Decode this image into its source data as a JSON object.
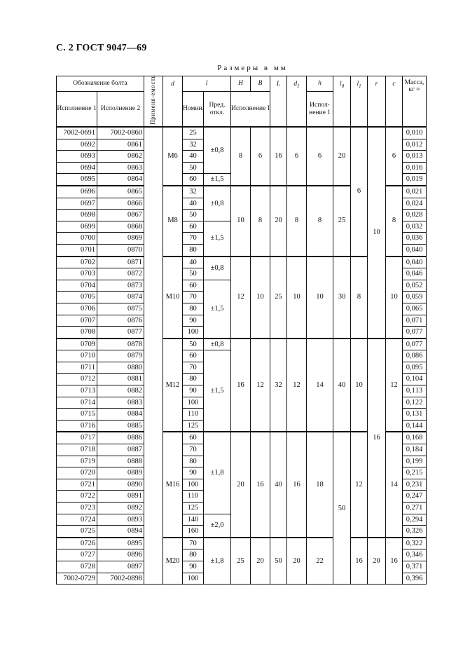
{
  "header": {
    "title": "С. 2 ГОСТ 9047—69",
    "units": "Размеры в мм"
  },
  "table": {
    "headers": {
      "designation": "Обозначение болта",
      "isp1": "Исполнение 1",
      "isp2": "Исполнение 2",
      "applicability": "Применя-емость",
      "d": "d",
      "l": "l",
      "l_nom": "Номин.",
      "l_tol": "Пред. откл.",
      "H": "H",
      "B": "B",
      "HB_sub": "Исполнение I",
      "L": "L",
      "d1": "d1",
      "h": "h",
      "h_sub": "Испол-нение 1",
      "l0": "l0",
      "l1": "l1",
      "r": "r",
      "c": "c",
      "mass": "Масса, кг ≈"
    },
    "rows": [
      {
        "isp1": "7002-0691",
        "isp2": "7002-0860",
        "l": "25",
        "mass": "0,010"
      },
      {
        "isp1": "0692",
        "isp2": "0861",
        "l": "32",
        "mass": "0,012"
      },
      {
        "isp1": "0693",
        "isp2": "0862",
        "l": "40",
        "mass": "0,013"
      },
      {
        "isp1": "0694",
        "isp2": "0863",
        "l": "50",
        "mass": "0,016"
      },
      {
        "isp1": "0695",
        "isp2": "0864",
        "l": "60",
        "mass": "0,019"
      },
      {
        "isp1": "0696",
        "isp2": "0865",
        "l": "32",
        "mass": "0,021"
      },
      {
        "isp1": "0697",
        "isp2": "0866",
        "l": "40",
        "mass": "0,024"
      },
      {
        "isp1": "0698",
        "isp2": "0867",
        "l": "50",
        "mass": "0,028"
      },
      {
        "isp1": "0699",
        "isp2": "0868",
        "l": "60",
        "mass": "0,032"
      },
      {
        "isp1": "0700",
        "isp2": "0869",
        "l": "70",
        "mass": "0,036"
      },
      {
        "isp1": "0701",
        "isp2": "0870",
        "l": "80",
        "mass": "0,040"
      },
      {
        "isp1": "0702",
        "isp2": "0871",
        "l": "40",
        "mass": "0,040"
      },
      {
        "isp1": "0703",
        "isp2": "0872",
        "l": "50",
        "mass": "0,046"
      },
      {
        "isp1": "0704",
        "isp2": "0873",
        "l": "60",
        "mass": "0,052"
      },
      {
        "isp1": "0705",
        "isp2": "0874",
        "l": "70",
        "mass": "0,059"
      },
      {
        "isp1": "0706",
        "isp2": "0875",
        "l": "80",
        "mass": "0,065"
      },
      {
        "isp1": "0707",
        "isp2": "0876",
        "l": "90",
        "mass": "0,071"
      },
      {
        "isp1": "0708",
        "isp2": "0877",
        "l": "100",
        "mass": "0,077"
      },
      {
        "isp1": "0709",
        "isp2": "0878",
        "l": "50",
        "mass": "0,077"
      },
      {
        "isp1": "0710",
        "isp2": "0879",
        "l": "60",
        "mass": "0,086"
      },
      {
        "isp1": "0711",
        "isp2": "0880",
        "l": "70",
        "mass": "0,095"
      },
      {
        "isp1": "0712",
        "isp2": "0881",
        "l": "80",
        "mass": "0,104"
      },
      {
        "isp1": "0713",
        "isp2": "0882",
        "l": "90",
        "mass": "0,113"
      },
      {
        "isp1": "0714",
        "isp2": "0883",
        "l": "100",
        "mass": "0,122"
      },
      {
        "isp1": "0715",
        "isp2": "0884",
        "l": "110",
        "mass": "0,131"
      },
      {
        "isp1": "0716",
        "isp2": "0885",
        "l": "125",
        "mass": "0,144"
      },
      {
        "isp1": "0717",
        "isp2": "0886",
        "l": "60",
        "mass": "0,168"
      },
      {
        "isp1": "0718",
        "isp2": "0887",
        "l": "70",
        "mass": "0,184"
      },
      {
        "isp1": "0719",
        "isp2": "0888",
        "l": "80",
        "mass": "0,199"
      },
      {
        "isp1": "0720",
        "isp2": "0889",
        "l": "90",
        "mass": "0,215"
      },
      {
        "isp1": "0721",
        "isp2": "0890",
        "l": "100",
        "mass": "0,231"
      },
      {
        "isp1": "0722",
        "isp2": "0891",
        "l": "110",
        "mass": "0,247"
      },
      {
        "isp1": "0723",
        "isp2": "0892",
        "l": "125",
        "mass": "0,271"
      },
      {
        "isp1": "0724",
        "isp2": "0893",
        "l": "140",
        "mass": "0,294"
      },
      {
        "isp1": "0725",
        "isp2": "0894",
        "l": "160",
        "mass": "0,326"
      },
      {
        "isp1": "0726",
        "isp2": "0895",
        "l": "70",
        "mass": "0,322"
      },
      {
        "isp1": "0727",
        "isp2": "0896",
        "l": "80",
        "mass": "0,346"
      },
      {
        "isp1": "0728",
        "isp2": "0897",
        "l": "90",
        "mass": "0,371"
      },
      {
        "isp1": "7002-0729",
        "isp2": "7002-0898",
        "l": "100",
        "mass": "0,396"
      }
    ],
    "spans": {
      "applicability": [
        {
          "v": "",
          "n": 39
        }
      ],
      "d": [
        {
          "v": "M6",
          "n": 5
        },
        {
          "v": "M8",
          "n": 6
        },
        {
          "v": "M10",
          "n": 7
        },
        {
          "v": "M12",
          "n": 8
        },
        {
          "v": "M16",
          "n": 9
        },
        {
          "v": "M20",
          "n": 4
        }
      ],
      "l_tol": [
        {
          "v": "±0,8",
          "n": 4
        },
        {
          "v": "±1,5",
          "n": 1
        },
        {
          "v": "±0,8",
          "n": 3
        },
        {
          "v": "±1,5",
          "n": 3
        },
        {
          "v": "±0,8",
          "n": 2
        },
        {
          "v": "±1,5",
          "n": 5
        },
        {
          "v": "±0,8",
          "n": 1
        },
        {
          "v": "±1,5",
          "n": 7
        },
        {
          "v": "±1,8",
          "n": 7
        },
        {
          "v": "±2,0",
          "n": 2
        },
        {
          "v": "±1,8",
          "n": 4
        }
      ],
      "H": [
        {
          "v": "8",
          "n": 5
        },
        {
          "v": "10",
          "n": 6
        },
        {
          "v": "12",
          "n": 7
        },
        {
          "v": "16",
          "n": 8
        },
        {
          "v": "20",
          "n": 9
        },
        {
          "v": "25",
          "n": 4
        }
      ],
      "B": [
        {
          "v": "6",
          "n": 5
        },
        {
          "v": "8",
          "n": 6
        },
        {
          "v": "10",
          "n": 7
        },
        {
          "v": "12",
          "n": 8
        },
        {
          "v": "16",
          "n": 9
        },
        {
          "v": "20",
          "n": 4
        }
      ],
      "L": [
        {
          "v": "16",
          "n": 5
        },
        {
          "v": "20",
          "n": 6
        },
        {
          "v": "25",
          "n": 7
        },
        {
          "v": "32",
          "n": 8
        },
        {
          "v": "40",
          "n": 9
        },
        {
          "v": "50",
          "n": 4
        }
      ],
      "d1": [
        {
          "v": "6",
          "n": 5
        },
        {
          "v": "8",
          "n": 6
        },
        {
          "v": "10",
          "n": 7
        },
        {
          "v": "12",
          "n": 8
        },
        {
          "v": "16",
          "n": 9
        },
        {
          "v": "20",
          "n": 4
        }
      ],
      "h": [
        {
          "v": "6",
          "n": 5
        },
        {
          "v": "8",
          "n": 6
        },
        {
          "v": "10",
          "n": 7
        },
        {
          "v": "14",
          "n": 8
        },
        {
          "v": "18",
          "n": 9
        },
        {
          "v": "22",
          "n": 4
        }
      ],
      "l0": [
        {
          "v": "20",
          "n": 5
        },
        {
          "v": "25",
          "n": 6
        },
        {
          "v": "30",
          "n": 7
        },
        {
          "v": "40",
          "n": 8
        },
        {
          "v": "50",
          "n": 13
        }
      ],
      "l1": [
        {
          "v": "6",
          "n": 11
        },
        {
          "v": "8",
          "n": 7
        },
        {
          "v": "10",
          "n": 8
        },
        {
          "v": "12",
          "n": 9
        },
        {
          "v": "16",
          "n": 4
        }
      ],
      "r": [
        {
          "v": "10",
          "n": 18
        },
        {
          "v": "16",
          "n": 17
        },
        {
          "v": "20",
          "n": 4
        }
      ],
      "c": [
        {
          "v": "6",
          "n": 5
        },
        {
          "v": "8",
          "n": 6
        },
        {
          "v": "10",
          "n": 7
        },
        {
          "v": "12",
          "n": 8
        },
        {
          "v": "14",
          "n": 9
        },
        {
          "v": "16",
          "n": 4
        }
      ]
    }
  }
}
